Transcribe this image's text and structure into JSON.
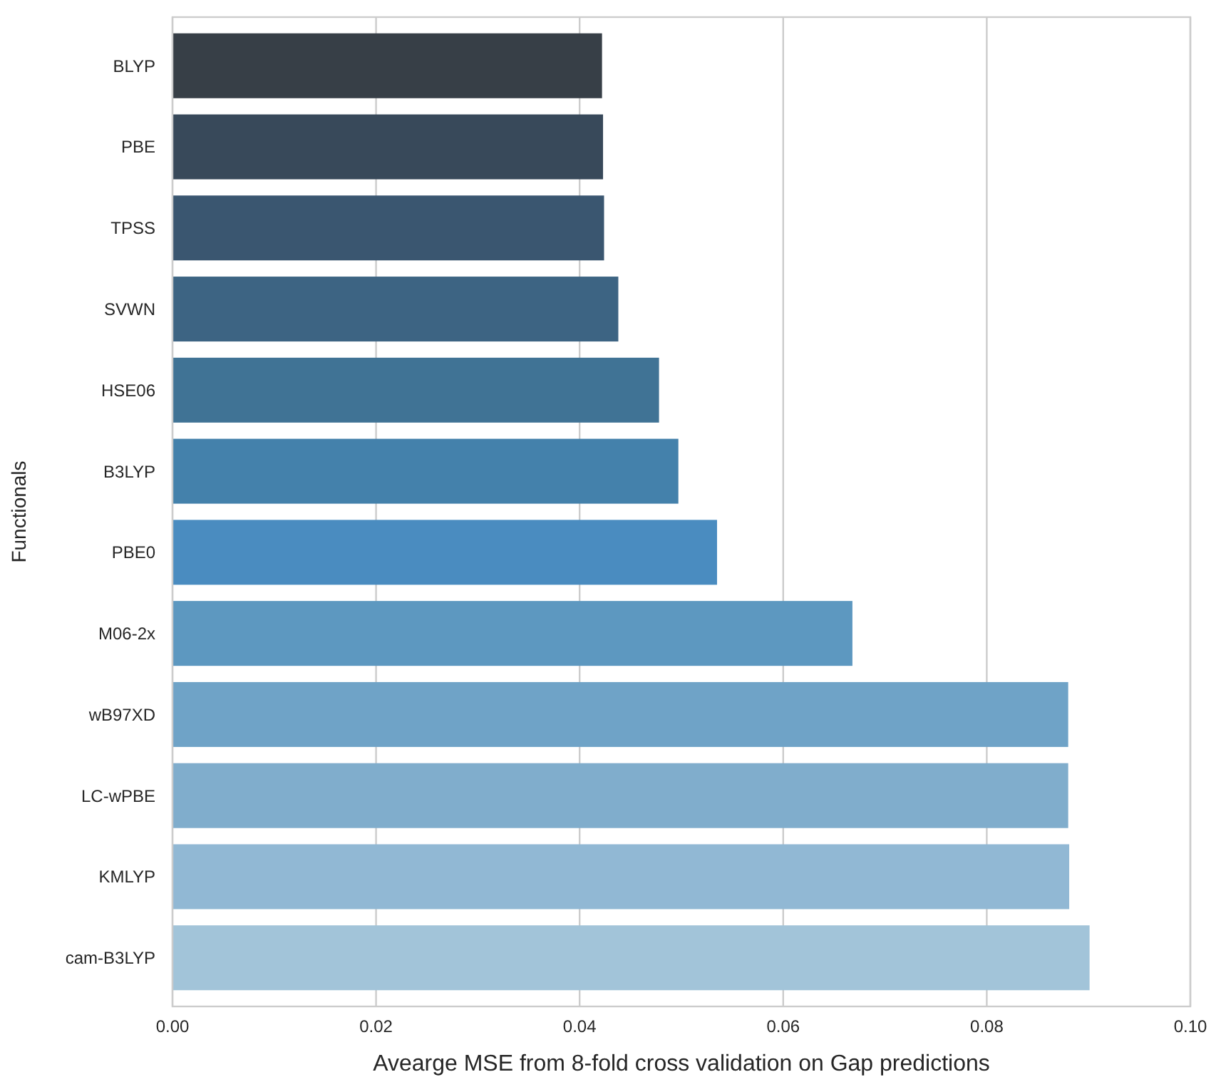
{
  "chart_data": {
    "type": "bar",
    "orientation": "horizontal",
    "xlabel": "Avearge MSE from 8-fold cross validation on Gap predictions",
    "ylabel": "Functionals",
    "categories": [
      "BLYP",
      "PBE",
      "TPSS",
      "SVWN",
      "HSE06",
      "B3LYP",
      "PBE0",
      "M06-2x",
      "wB97XD",
      "LC-wPBE",
      "KMLYP",
      "cam-B3LYP"
    ],
    "values": [
      0.0422,
      0.0423,
      0.0424,
      0.0438,
      0.0478,
      0.0497,
      0.0535,
      0.0668,
      0.088,
      0.088,
      0.0881,
      0.0901
    ],
    "colors": [
      "#373f47",
      "#38495a",
      "#3a5670",
      "#3d6483",
      "#407395",
      "#4481ab",
      "#4a8cc0",
      "#5d98c0",
      "#6fa3c7",
      "#80adcc",
      "#91b8d4",
      "#a2c4d9"
    ],
    "xlim": [
      0,
      0.1
    ],
    "xticks": [
      {
        "value": 0,
        "label": "0.00"
      },
      {
        "value": 0.02,
        "label": "0.02"
      },
      {
        "value": 0.04,
        "label": "0.04"
      },
      {
        "value": 0.06,
        "label": "0.06"
      },
      {
        "value": 0.08,
        "label": "0.08"
      },
      {
        "value": 0.1,
        "label": "0.10"
      }
    ],
    "grid": "x"
  }
}
